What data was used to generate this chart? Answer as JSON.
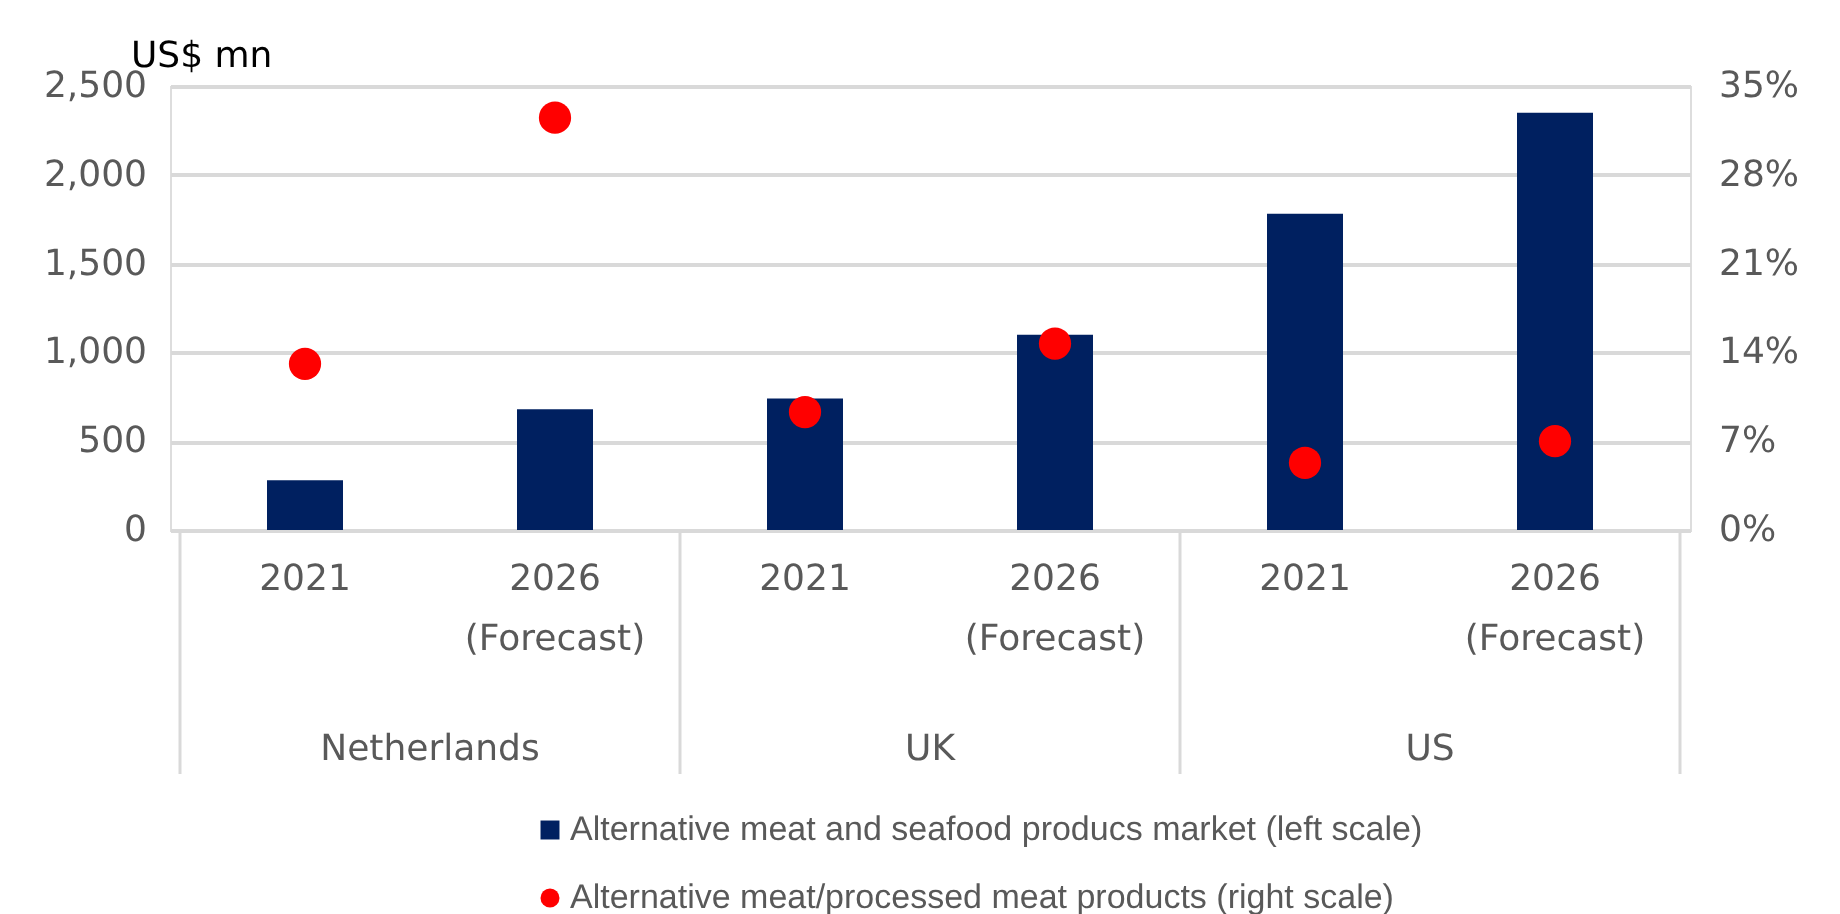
{
  "chart_data": {
    "type": "bar",
    "ylabel": "US$ mn",
    "categories": [
      "2021",
      "2026 (Forecast)",
      "2021",
      "2026 (Forecast)",
      "2021",
      "2026 (Forecast)"
    ],
    "annotations": [
      "Netherlands",
      "UK",
      "US"
    ],
    "series": [
      {
        "name": "Alternative meat and seafood producs market (left scale)",
        "color": "#002060",
        "values": [
          280,
          680,
          740,
          1100,
          1780,
          2350
        ]
      },
      {
        "name": "Alternative meat/processed meat products (right scale)",
        "type": "scatter",
        "axis": "y2",
        "color": "#ff0000",
        "values": [
          13.1,
          32.5,
          9.3,
          14.7,
          5.3,
          7.0
        ]
      }
    ],
    "ylim": [
      0,
      2500
    ],
    "yticks": [
      0,
      500,
      {
        "value": 1000,
        "label": "1,000"
      },
      {
        "value": 1500,
        "label": "1,500"
      },
      {
        "value": 2000,
        "label": "2,000"
      },
      {
        "value": 2500,
        "label": "2,500"
      }
    ],
    "y2lim": [
      0,
      35
    ],
    "y2ticks": [
      {
        "value": 0,
        "label": "0%"
      },
      {
        "value": 7,
        "label": "7%"
      },
      {
        "value": 14,
        "label": "14%"
      },
      {
        "value": 21,
        "label": "21%"
      },
      {
        "value": 28,
        "label": "28%"
      },
      {
        "value": 35,
        "label": "35%"
      }
    ],
    "grid": "y",
    "legend": "bottom",
    "marker": "circle"
  }
}
